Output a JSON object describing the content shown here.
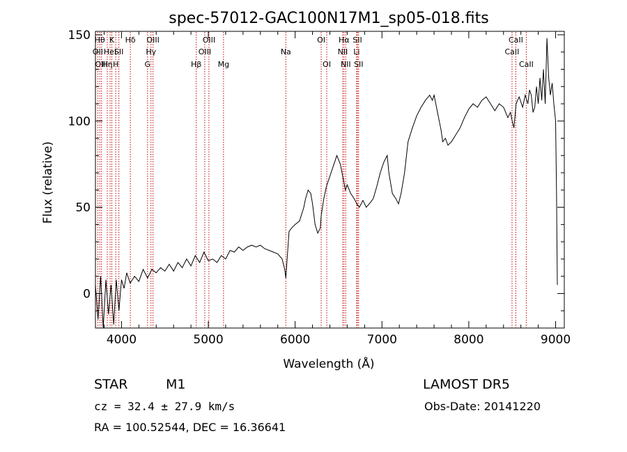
{
  "chart_data": {
    "type": "line",
    "title": "spec-57012-GAC100N17M1_sp05-018.fits",
    "xlabel": "Wavelength (Å)",
    "ylabel": "Flux (relative)",
    "xlim": [
      3700,
      9100
    ],
    "ylim": [
      -20,
      152
    ],
    "xticks": [
      4000,
      5000,
      6000,
      7000,
      8000,
      9000
    ],
    "yticks": [
      0,
      50,
      100,
      150
    ],
    "grid": false,
    "line_color": "#000000",
    "marker_color": "#c00000",
    "series": [
      {
        "x": [
          3700,
          3730,
          3760,
          3790,
          3820,
          3850,
          3880,
          3910,
          3940,
          3970,
          4000,
          4030,
          4060,
          4100,
          4150,
          4200,
          4250,
          4300,
          4350,
          4400,
          4450,
          4500,
          4550,
          4600,
          4650,
          4700,
          4750,
          4800,
          4850,
          4900,
          4950,
          5000,
          5050,
          5100,
          5150,
          5200,
          5250,
          5300,
          5350,
          5400,
          5450,
          5500,
          5550,
          5600,
          5650,
          5700,
          5750,
          5800,
          5850,
          5880,
          5893,
          5905,
          5930,
          5960,
          6000,
          6050,
          6100,
          6120,
          6150,
          6180,
          6200,
          6230,
          6260,
          6290,
          6300,
          6330,
          6360,
          6400,
          6440,
          6480,
          6520,
          6560,
          6580,
          6600,
          6640,
          6680,
          6710,
          6740,
          6780,
          6820,
          6870,
          6900,
          6940,
          6980,
          7020,
          7060,
          7080,
          7120,
          7160,
          7190,
          7220,
          7260,
          7300,
          7350,
          7400,
          7450,
          7500,
          7550,
          7580,
          7600,
          7640,
          7680,
          7700,
          7730,
          7760,
          7800,
          7850,
          7900,
          7950,
          8000,
          8050,
          8100,
          8150,
          8200,
          8250,
          8300,
          8350,
          8400,
          8450,
          8480,
          8500,
          8520,
          8545,
          8580,
          8620,
          8650,
          8680,
          8700,
          8720,
          8740,
          8760,
          8780,
          8800,
          8820,
          8840,
          8860,
          8880,
          8900,
          8920,
          8940,
          8960,
          8980,
          9000,
          9010,
          9020
        ],
        "y": [
          5,
          -15,
          10,
          -20,
          8,
          -12,
          5,
          -18,
          8,
          -10,
          8,
          3,
          12,
          6,
          10,
          7,
          14,
          9,
          14,
          12,
          15,
          13,
          17,
          13,
          18,
          15,
          20,
          16,
          22,
          18,
          24,
          19,
          20,
          18,
          22,
          20,
          25,
          24,
          27,
          25,
          27,
          28,
          27,
          28,
          26,
          25,
          24,
          23,
          20,
          14,
          9,
          18,
          36,
          38,
          40,
          42,
          50,
          55,
          60,
          58,
          52,
          40,
          35,
          38,
          45,
          55,
          62,
          68,
          74,
          80,
          75,
          65,
          60,
          63,
          58,
          55,
          52,
          50,
          54,
          50,
          53,
          55,
          62,
          70,
          76,
          80,
          70,
          58,
          55,
          52,
          58,
          70,
          88,
          96,
          103,
          108,
          112,
          115,
          112,
          115,
          105,
          95,
          88,
          90,
          86,
          88,
          92,
          96,
          102,
          107,
          110,
          108,
          112,
          114,
          110,
          106,
          110,
          108,
          102,
          105,
          100,
          96,
          110,
          114,
          108,
          115,
          110,
          118,
          115,
          105,
          108,
          120,
          110,
          125,
          112,
          130,
          110,
          148,
          125,
          115,
          122,
          110,
          100,
          60,
          5
        ]
      }
    ],
    "line_markers": [
      {
        "wl": 3727,
        "label": "OII",
        "row": 2
      },
      {
        "wl": 3750,
        "label": "Hθ",
        "row": 1
      },
      {
        "wl": 3770,
        "label": "OIII",
        "row": 3
      },
      {
        "wl": 3836,
        "label": "Hη",
        "row": 3
      },
      {
        "wl": 3869,
        "label": "HeI",
        "row": 2
      },
      {
        "wl": 3889,
        "label": "K",
        "row": 1
      },
      {
        "wl": 3934,
        "label": "H",
        "row": 3
      },
      {
        "wl": 3970,
        "label": "SII",
        "row": 2
      },
      {
        "wl": 4102,
        "label": "Hδ",
        "row": 1
      },
      {
        "wl": 4300,
        "label": "G",
        "row": 3
      },
      {
        "wl": 4340,
        "label": "Hγ",
        "row": 2
      },
      {
        "wl": 4363,
        "label": "OIII",
        "row": 1
      },
      {
        "wl": 4861,
        "label": "Hβ",
        "row": 3
      },
      {
        "wl": 4959,
        "label": "OIII",
        "row": 2
      },
      {
        "wl": 5007,
        "label": "OIII",
        "row": 1
      },
      {
        "wl": 5175,
        "label": "Mg",
        "row": 3
      },
      {
        "wl": 5893,
        "label": "Na",
        "row": 2
      },
      {
        "wl": 6300,
        "label": "OI",
        "row": 1
      },
      {
        "wl": 6364,
        "label": "OI",
        "row": 3
      },
      {
        "wl": 6548,
        "label": "NII",
        "row": 2
      },
      {
        "wl": 6563,
        "label": "Hα",
        "row": 1
      },
      {
        "wl": 6583,
        "label": "NII",
        "row": 3
      },
      {
        "wl": 6708,
        "label": "Li",
        "row": 2
      },
      {
        "wl": 6717,
        "label": "SII",
        "row": 1
      },
      {
        "wl": 6731,
        "label": "SII",
        "row": 3
      },
      {
        "wl": 8498,
        "label": "CaII",
        "row": 2
      },
      {
        "wl": 8542,
        "label": "CaII",
        "row": 1
      },
      {
        "wl": 8662,
        "label": "CaII",
        "row": 3
      }
    ]
  },
  "info": {
    "object_class": "STAR",
    "subclass": "M1",
    "survey": "LAMOST DR5",
    "cz": "cz = 32.4 ± 27.9 km/s",
    "obs_date": "Obs-Date: 20141220",
    "coords": "RA = 100.52544, DEC =  16.36641"
  }
}
